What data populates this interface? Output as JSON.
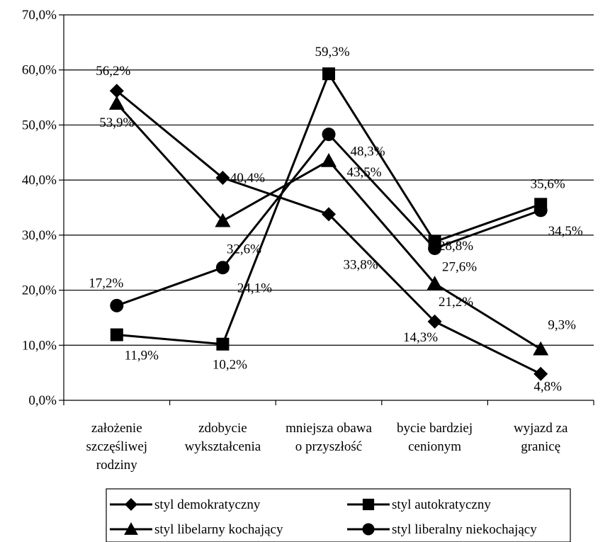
{
  "chart_data": {
    "type": "line",
    "title": "",
    "xlabel": "",
    "ylabel": "",
    "ylim": [
      0,
      70
    ],
    "y_tick_step": 10,
    "y_tick_format": "percent_comma_1",
    "grid": "horizontal",
    "legend_position": "bottom",
    "categories": [
      [
        "założenie",
        "szczęśliwej",
        "rodziny"
      ],
      [
        "zdobycie",
        "wykształcenia"
      ],
      [
        "mniejsza obawa",
        "o przyszłość"
      ],
      [
        "bycie bardziej",
        "cenionym"
      ],
      [
        "wyjazd za",
        "granicę"
      ]
    ],
    "y_tick_labels": [
      "0,0%",
      "10,0%",
      "20,0%",
      "30,0%",
      "40,0%",
      "50,0%",
      "60,0%",
      "70,0%"
    ],
    "series": [
      {
        "name": "styl demokratyczny",
        "marker": "diamond",
        "values": [
          56.2,
          40.4,
          33.8,
          14.3,
          4.8
        ],
        "labels": [
          "56,2%",
          "40,4%",
          "33,8%",
          "14,3%",
          "4,8%"
        ]
      },
      {
        "name": "styl autokratyczny",
        "marker": "square",
        "values": [
          11.9,
          10.2,
          59.3,
          28.8,
          35.6
        ],
        "labels": [
          "11,9%",
          "10,2%",
          "59,3%",
          "28,8%",
          "35,6%"
        ]
      },
      {
        "name": "styl libelarny kochający",
        "marker": "triangle",
        "values": [
          53.9,
          32.6,
          43.5,
          21.2,
          9.3
        ],
        "labels": [
          "53,9%",
          "32,6%",
          "43,5%",
          "21,2%",
          "9,3%"
        ]
      },
      {
        "name": "styl liberalny niekochający",
        "marker": "circle",
        "values": [
          17.2,
          24.1,
          48.3,
          27.6,
          34.5
        ],
        "labels": [
          "17,2%",
          "24,1%",
          "48,3%",
          "27,6%",
          "34,5%"
        ]
      }
    ]
  }
}
